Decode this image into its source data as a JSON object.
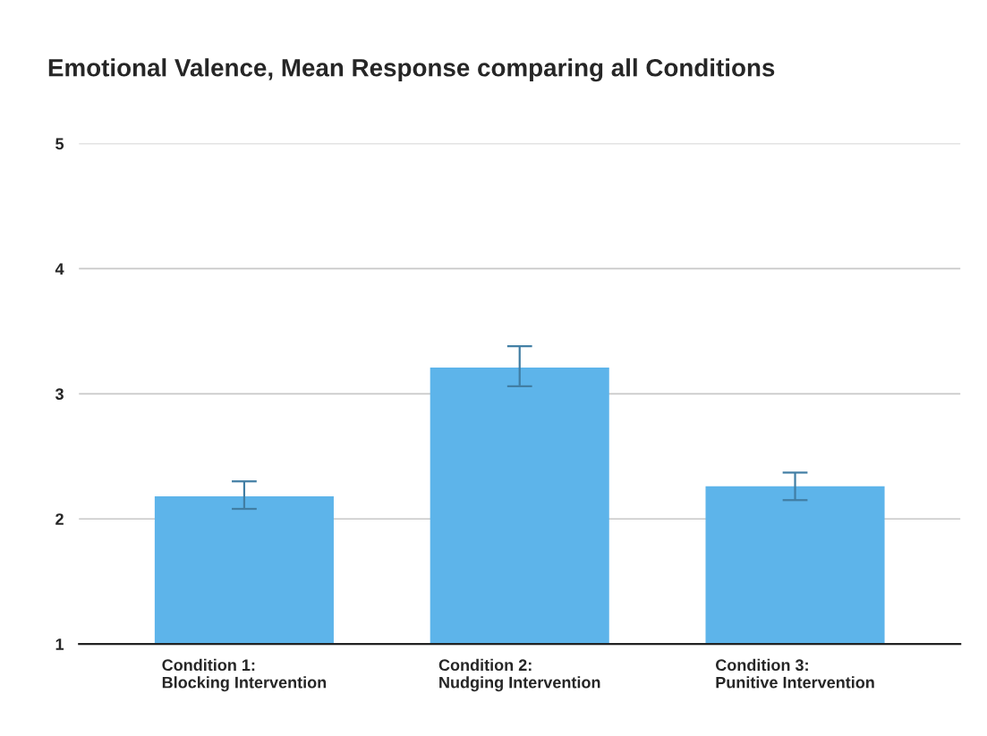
{
  "chart_data": {
    "type": "bar",
    "title": "Emotional Valence, Mean Response comparing all Conditions",
    "categories": [
      "Condition 1:\nBlocking Intervention",
      "Condition 2:\nNudging Intervention",
      "Condition 3:\nPunitive Intervention"
    ],
    "values": [
      2.18,
      3.21,
      2.26
    ],
    "errors": [
      [
        2.08,
        2.3
      ],
      [
        3.06,
        3.38
      ],
      [
        2.15,
        2.37
      ]
    ],
    "color": "#5db4ea",
    "ylim": [
      1,
      5
    ],
    "yticks": [
      1,
      2,
      3,
      4,
      5
    ],
    "grid": "y"
  }
}
